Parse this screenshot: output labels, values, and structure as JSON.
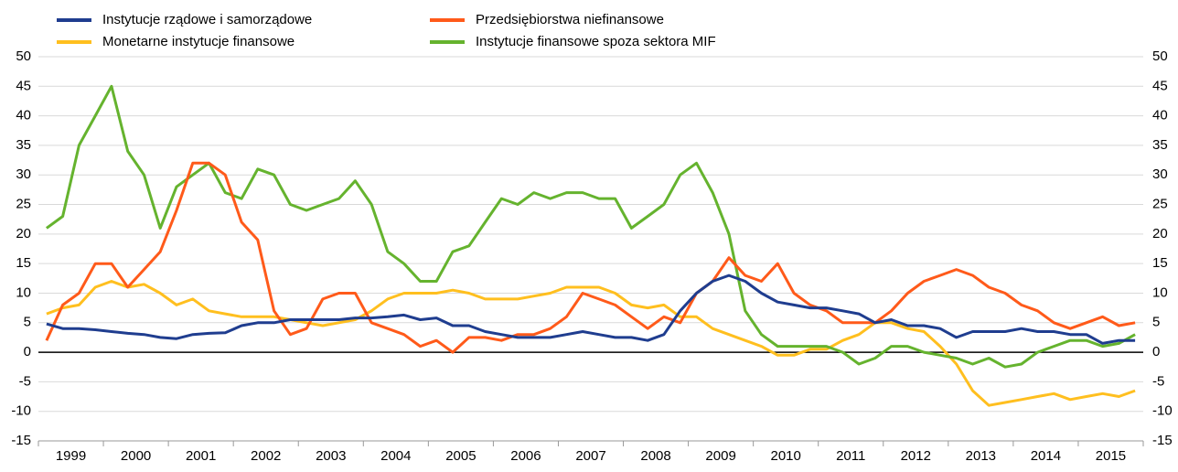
{
  "chart_data": {
    "type": "line",
    "categories": [
      "1999",
      null,
      null,
      null,
      "2000",
      null,
      null,
      null,
      "2001",
      null,
      null,
      null,
      "2002",
      null,
      null,
      null,
      "2003",
      null,
      null,
      null,
      "2004",
      null,
      null,
      null,
      "2005",
      null,
      null,
      null,
      "2006",
      null,
      null,
      null,
      "2007",
      null,
      null,
      null,
      "2008",
      null,
      null,
      null,
      "2009",
      null,
      null,
      null,
      "2010",
      null,
      null,
      null,
      "2011",
      null,
      null,
      null,
      "2012",
      null,
      null,
      null,
      "2013",
      null,
      null,
      null,
      "2014",
      null,
      null,
      null,
      "2015",
      null,
      null,
      null
    ],
    "series": [
      {
        "name": "Instytucje rządowe i samorządowe",
        "color": "#1f3d8f",
        "values": [
          4.8,
          4,
          4,
          3.8,
          3.5,
          3.2,
          3,
          2.5,
          2.3,
          3,
          3.2,
          3.3,
          4.5,
          5,
          5,
          5.5,
          5.5,
          5.5,
          5.5,
          5.8,
          5.8,
          6,
          6.3,
          5.5,
          5.8,
          4.5,
          4.5,
          3.5,
          3,
          2.5,
          2.5,
          2.5,
          3,
          3.5,
          3,
          2.5,
          2.5,
          2,
          3,
          7,
          10,
          12,
          13,
          12,
          10,
          8.5,
          8,
          7.5,
          7.5,
          7,
          6.5,
          5,
          5.5,
          4.5,
          4.5,
          4,
          2.5,
          3.5,
          3.5,
          3.5,
          4,
          3.5,
          3.5,
          3,
          3,
          1.5,
          2,
          2
        ]
      },
      {
        "name": "Monetarne instytucje finansowe",
        "color": "#ffbf1f",
        "values": [
          6.5,
          7.5,
          8,
          11,
          12,
          11,
          11.5,
          10,
          8,
          9,
          7,
          6.5,
          6,
          6,
          6,
          5.5,
          5,
          4.5,
          5,
          5.5,
          7,
          9,
          10,
          10,
          10,
          10.5,
          10,
          9,
          9,
          9,
          9.5,
          10,
          11,
          11,
          11,
          10,
          8,
          7.5,
          8,
          6,
          6,
          4,
          3,
          2,
          1,
          -0.5,
          -0.5,
          0.5,
          0.5,
          2,
          3,
          5,
          5,
          4,
          3.5,
          1,
          -2,
          -6.5,
          -9,
          -8.5,
          -8,
          -7.5,
          -7,
          -8,
          -7.5,
          -7,
          -7.5,
          -6.5
        ]
      },
      {
        "name": "Przedsiębiorstwa niefinansowe",
        "color": "#ff5a1a",
        "values": [
          2,
          8,
          10,
          15,
          15,
          11,
          14,
          17,
          24,
          32,
          32,
          30,
          22,
          19,
          7,
          3,
          4,
          9,
          10,
          10,
          5,
          4,
          3,
          1,
          2,
          0,
          2.5,
          2.5,
          2,
          3,
          3,
          4,
          6,
          10,
          9,
          8,
          6,
          4,
          6,
          5,
          10,
          12,
          16,
          13,
          12,
          15,
          10,
          8,
          7,
          5,
          5,
          5,
          7,
          10,
          12,
          13,
          14,
          13,
          11,
          10,
          8,
          7,
          5,
          4,
          5,
          6,
          4.5,
          5
        ]
      },
      {
        "name": "Instytucje finansowe spoza sektora MIF",
        "color": "#65b32e",
        "values": [
          21,
          23,
          35,
          40,
          45,
          34,
          30,
          21,
          28,
          30,
          32,
          27,
          26,
          31,
          30,
          25,
          24,
          25,
          26,
          29,
          25,
          17,
          15,
          12,
          12,
          17,
          18,
          22,
          26,
          25,
          27,
          26,
          27,
          27,
          26,
          26,
          21,
          23,
          25,
          30,
          32,
          27,
          20,
          7,
          3,
          1,
          1,
          1,
          1,
          0,
          -2,
          -1,
          1,
          1,
          0,
          -0.5,
          -1,
          -2,
          -1,
          -2.5,
          -2,
          0,
          1,
          2,
          2,
          1,
          1.5,
          3
        ]
      }
    ],
    "ylim": [
      -15,
      50
    ],
    "yticks": [
      -15,
      -10,
      -5,
      0,
      5,
      10,
      15,
      20,
      25,
      30,
      35,
      40,
      45,
      50
    ],
    "grid": true
  }
}
